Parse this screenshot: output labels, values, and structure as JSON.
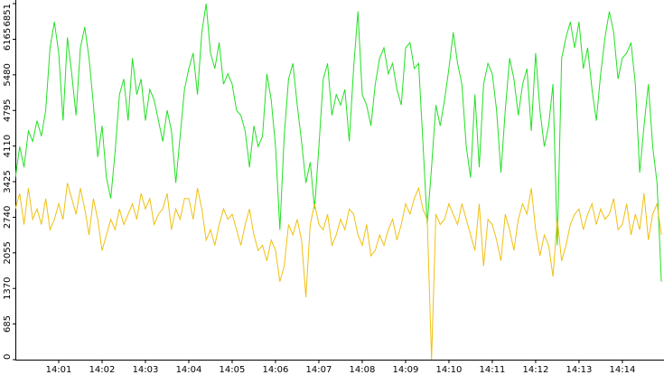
{
  "chart_data": {
    "type": "line",
    "x": [
      0,
      0.1,
      0.2,
      0.3,
      0.4,
      0.5,
      0.6,
      0.7,
      0.8,
      0.9,
      1,
      1.1,
      1.2,
      1.3,
      1.4,
      1.5,
      1.6,
      1.7,
      1.8,
      1.9,
      2,
      2.1,
      2.2,
      2.3,
      2.4,
      2.5,
      2.6,
      2.7,
      2.8,
      2.9,
      3,
      3.1,
      3.2,
      3.3,
      3.4,
      3.5,
      3.6,
      3.7,
      3.8,
      3.9,
      4,
      4.1,
      4.2,
      4.3,
      4.4,
      4.5,
      4.6,
      4.7,
      4.8,
      4.9,
      5,
      5.1,
      5.2,
      5.3,
      5.4,
      5.5,
      5.6,
      5.7,
      5.8,
      5.9,
      6,
      6.1,
      6.2,
      6.3,
      6.4,
      6.5,
      6.6,
      6.7,
      6.8,
      6.9,
      7,
      7.1,
      7.2,
      7.3,
      7.4,
      7.5,
      7.6,
      7.7,
      7.8,
      7.9,
      8,
      8.1,
      8.2,
      8.3,
      8.4,
      8.5,
      8.6,
      8.7,
      8.8,
      8.9,
      9,
      9.1,
      9.2,
      9.3,
      9.4,
      9.5,
      9.6,
      9.7,
      9.8,
      9.9,
      10,
      10.1,
      10.2,
      10.3,
      10.4,
      10.5,
      10.6,
      10.7,
      10.8,
      10.9,
      11,
      11.1,
      11.2,
      11.3,
      11.4,
      11.5,
      11.6,
      11.7,
      11.8,
      11.9,
      12,
      12.1,
      12.2,
      12.3,
      12.4,
      12.5,
      12.6,
      12.7,
      12.8,
      12.9,
      13,
      13.1,
      13.2,
      13.3,
      13.4,
      13.5,
      13.6,
      13.7,
      13.8,
      13.9,
      14,
      14.1,
      14.2,
      14.3,
      14.4,
      14.5,
      14.6,
      14.7,
      14.8,
      14.9
    ],
    "series": [
      {
        "color": "#22e022",
        "values": [
          3500,
          4100,
          3700,
          4400,
          4200,
          4600,
          4300,
          4800,
          6000,
          6500,
          5900,
          4600,
          6200,
          5500,
          4700,
          6000,
          6400,
          5800,
          4900,
          3900,
          4500,
          3500,
          3100,
          4000,
          5100,
          5400,
          4600,
          5800,
          5100,
          5400,
          4600,
          5200,
          5000,
          4600,
          4200,
          4800,
          4400,
          3400,
          4300,
          5200,
          5600,
          5900,
          5100,
          6300,
          6851,
          5900,
          5600,
          6100,
          5300,
          5500,
          5300,
          4800,
          4700,
          4400,
          3700,
          4500,
          4100,
          4300,
          5500,
          5000,
          4100,
          2500,
          4300,
          5400,
          5700,
          4900,
          4200,
          3400,
          3800,
          2900,
          4100,
          5400,
          5700,
          4700,
          5100,
          4900,
          5200,
          4200,
          5600,
          6700,
          5100,
          4900,
          4500,
          5300,
          5800,
          6000,
          5500,
          5700,
          5200,
          4900,
          6000,
          6100,
          5600,
          5700,
          4200,
          2600,
          3700,
          4900,
          4500,
          5000,
          5600,
          6300,
          5700,
          5300,
          4100,
          3500,
          5100,
          3700,
          5300,
          5700,
          5500,
          4800,
          3600,
          4800,
          5800,
          5400,
          4700,
          5300,
          5600,
          4400,
          5900,
          4800,
          4100,
          4500,
          5300,
          2200,
          5800,
          6200,
          6500,
          6000,
          6500,
          5600,
          6000,
          5200,
          4600,
          5500,
          6200,
          6700,
          6300,
          5400,
          5800,
          5900,
          6100,
          5300,
          3600,
          4500,
          5300,
          4100,
          3400,
          1500
        ]
      },
      {
        "color": "#f0c010",
        "values": [
          2900,
          3200,
          2600,
          3300,
          2700,
          2900,
          2600,
          3100,
          2500,
          2700,
          3000,
          2700,
          3400,
          3100,
          2800,
          3300,
          2900,
          2400,
          3100,
          2700,
          2100,
          2400,
          2700,
          2500,
          2900,
          2600,
          2800,
          3000,
          2700,
          3200,
          2900,
          3100,
          2600,
          2800,
          2900,
          3200,
          2500,
          2900,
          2700,
          3100,
          3100,
          2700,
          3300,
          2900,
          2300,
          2500,
          2200,
          2600,
          2900,
          2700,
          2800,
          2500,
          2200,
          2600,
          2900,
          2400,
          2100,
          2200,
          1900,
          2300,
          2100,
          1500,
          1800,
          2600,
          2400,
          2700,
          2300,
          1200,
          2600,
          3000,
          2600,
          2500,
          2800,
          2200,
          2400,
          2700,
          2500,
          2900,
          2800,
          2400,
          2200,
          2600,
          2000,
          2100,
          2400,
          2200,
          2500,
          2700,
          2300,
          2600,
          3000,
          2800,
          3100,
          3300,
          2900,
          2700,
          0,
          2800,
          2600,
          2700,
          3000,
          2800,
          2600,
          3000,
          2700,
          2400,
          2100,
          3000,
          1800,
          2700,
          2600,
          2300,
          1900,
          2800,
          2500,
          2100,
          2700,
          3000,
          2800,
          3300,
          2500,
          2000,
          2400,
          2200,
          1600,
          2700,
          1900,
          2200,
          2600,
          2800,
          2900,
          2500,
          2800,
          3000,
          2600,
          2900,
          2700,
          2800,
          3100,
          2500,
          2600,
          3000,
          2400,
          2800,
          2500,
          3200,
          2300,
          2800,
          3000,
          2400
        ]
      }
    ],
    "xlim": [
      0,
      14.96
    ],
    "xticks": [
      {
        "value": 1,
        "label": "14:01"
      },
      {
        "value": 2,
        "label": "14:02"
      },
      {
        "value": 3,
        "label": "14:03"
      },
      {
        "value": 4,
        "label": "14:04"
      },
      {
        "value": 5,
        "label": "14:05"
      },
      {
        "value": 6,
        "label": "14:06"
      },
      {
        "value": 7,
        "label": "14:07"
      },
      {
        "value": 8,
        "label": "14:08"
      },
      {
        "value": 9,
        "label": "14:09"
      },
      {
        "value": 10,
        "label": "14:10"
      },
      {
        "value": 11,
        "label": "14:11"
      },
      {
        "value": 12,
        "label": "14:12"
      },
      {
        "value": 13,
        "label": "14:13"
      },
      {
        "value": 14,
        "label": "14:14"
      }
    ],
    "ylim": [
      0,
      6851
    ],
    "yticks": [
      0,
      685,
      1370,
      2055,
      2740,
      3425,
      4110,
      4795,
      5480,
      6165,
      6851
    ]
  }
}
